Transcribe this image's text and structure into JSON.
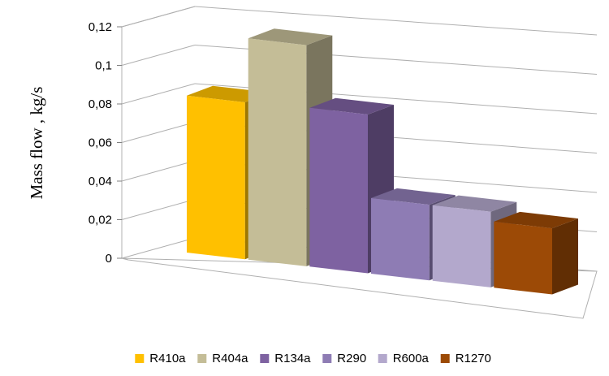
{
  "chart_data": {
    "type": "bar",
    "title": "",
    "xlabel": "",
    "ylabel": "Mass flow , kg/s",
    "ylim": [
      0,
      0.12
    ],
    "y_ticks": [
      "0",
      "0,02",
      "0,04",
      "0,06",
      "0,08",
      "0,1",
      "0,12"
    ],
    "y_tick_values": [
      0,
      0.02,
      0.04,
      0.06,
      0.08,
      0.1,
      0.12
    ],
    "grid": true,
    "legend_position": "bottom",
    "style": "3d-column",
    "series": [
      {
        "name": "R410a",
        "value": 0.083,
        "color": "#FFC000"
      },
      {
        "name": "R404a",
        "value": 0.117,
        "color": "#C4BD97"
      },
      {
        "name": "R134a",
        "value": 0.084,
        "color": "#7E62A1"
      },
      {
        "name": "R290",
        "value": 0.04,
        "color": "#8E7CB4"
      },
      {
        "name": "R600a",
        "value": 0.04,
        "color": "#B3A8CC"
      },
      {
        "name": "R1270",
        "value": 0.035,
        "color": "#9C4A06"
      }
    ]
  }
}
